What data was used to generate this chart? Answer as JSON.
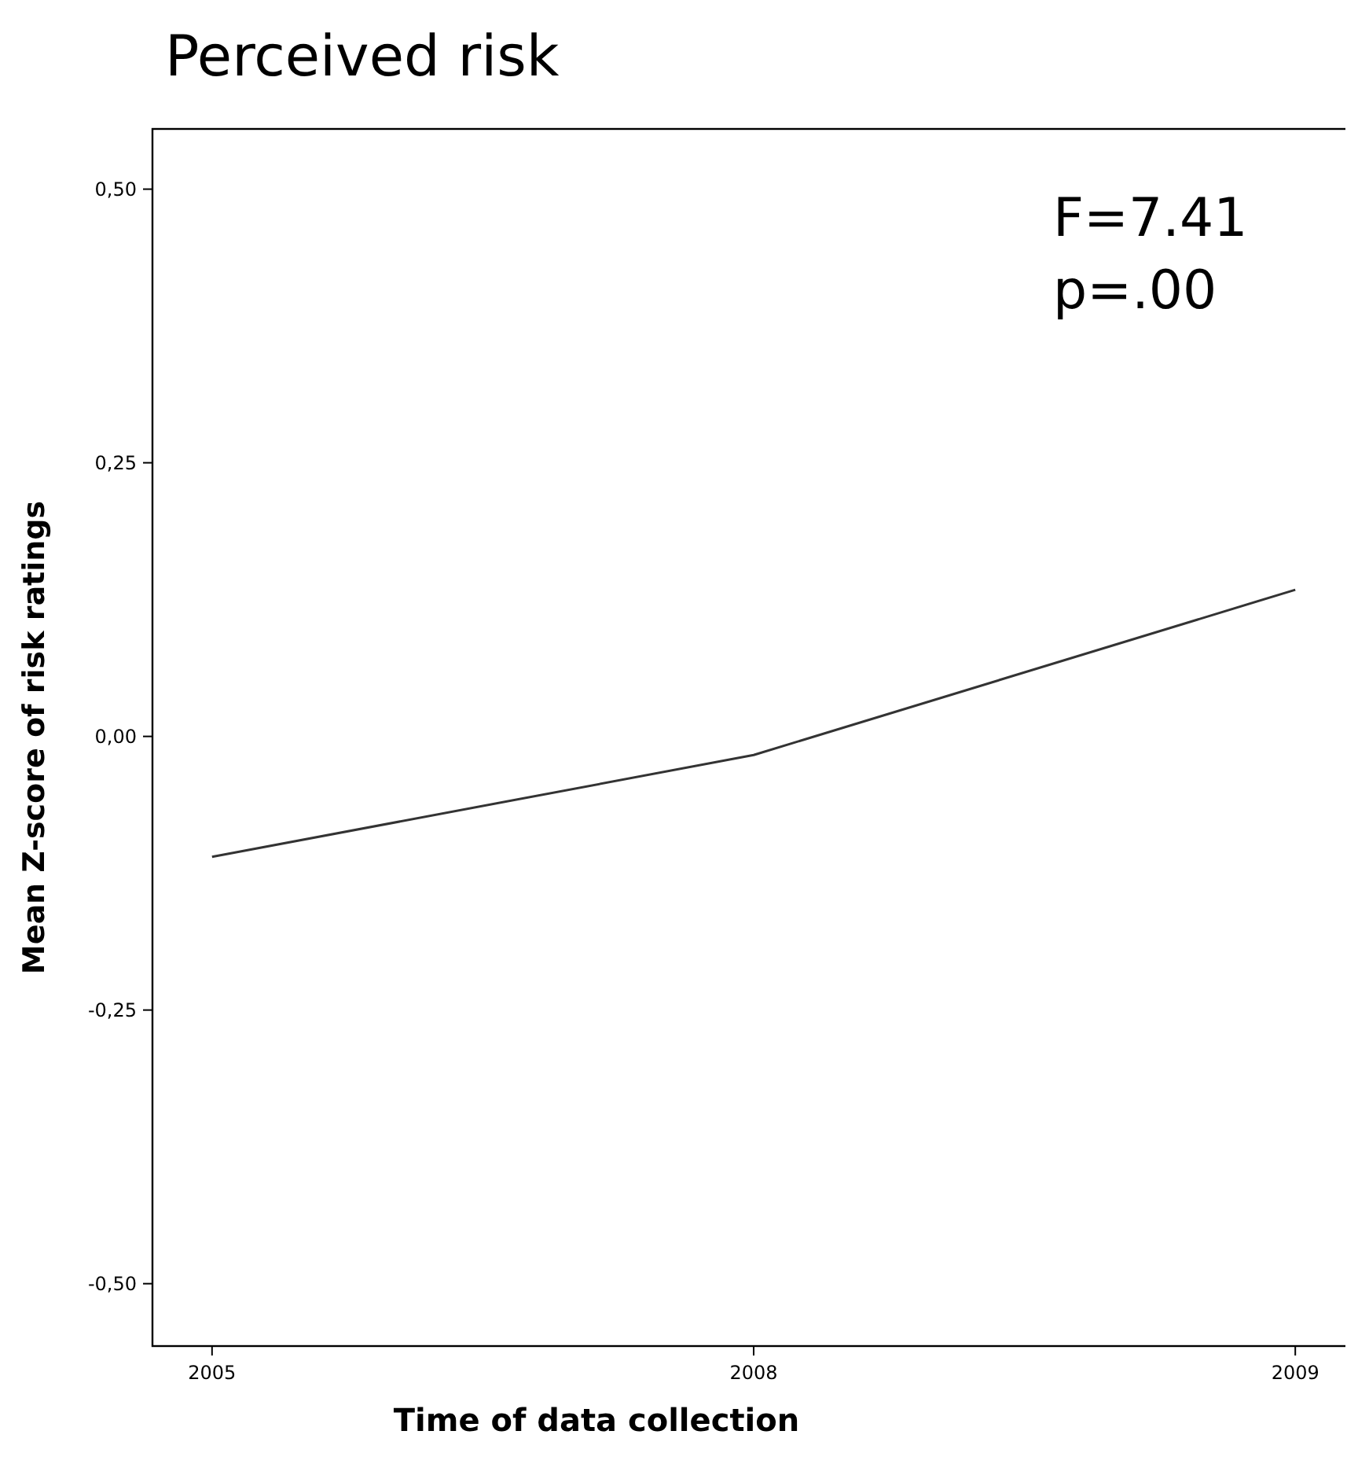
{
  "chart_data": {
    "type": "line",
    "title": "Perceived risk",
    "xlabel": "Time of data collection",
    "ylabel": "Mean Z-score of risk ratings",
    "categories": [
      "2005",
      "2008",
      "2009"
    ],
    "series": [
      {
        "color": "#333333",
        "values": [
          -0.11,
          -0.017,
          0.134
        ]
      }
    ],
    "ylim": [
      -0.557,
      0.555
    ],
    "yticks": [
      {
        "value": -0.5,
        "label": "-0,50"
      },
      {
        "value": -0.25,
        "label": "-0,25"
      },
      {
        "value": 0,
        "label": "0,00"
      },
      {
        "value": 0.25,
        "label": "0,25"
      },
      {
        "value": 0.5,
        "label": "0,50"
      }
    ],
    "annotations": [
      "F=7.41",
      "p=.00"
    ],
    "grid": false,
    "marker": "none",
    "line_style": "solid"
  }
}
